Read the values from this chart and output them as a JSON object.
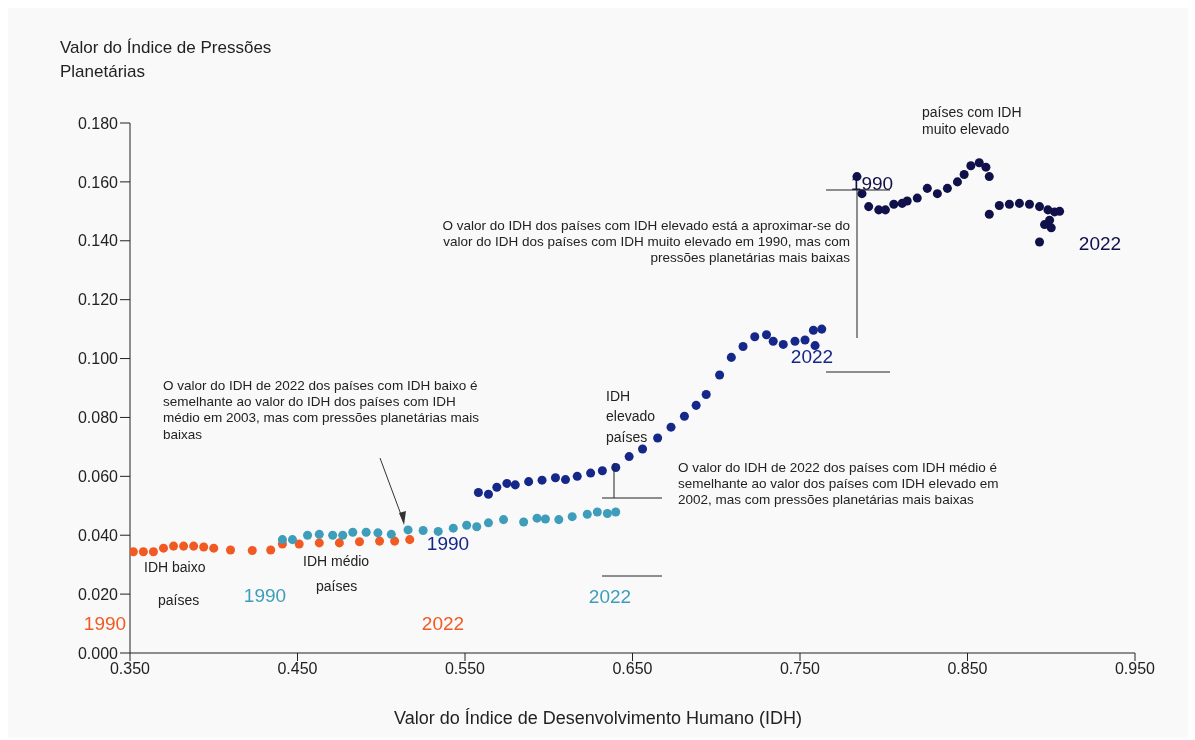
{
  "chart_data": {
    "type": "scatter",
    "ylabel": "Valor do Índice de Pressões Planetárias",
    "xlabel": "Valor do Índice de Desenvolvimento Humano (IDH)",
    "xlim": [
      0.35,
      0.95
    ],
    "xticks": [
      {
        "value": 0.35,
        "label": "0.350"
      },
      {
        "value": 0.45,
        "label": "0.450"
      },
      {
        "value": 0.55,
        "label": "0.550"
      },
      {
        "value": 0.65,
        "label": "0.650"
      },
      {
        "value": 0.75,
        "label": "0.750"
      },
      {
        "value": 0.85,
        "label": "0.850"
      },
      {
        "value": 0.95,
        "label": "0.950"
      }
    ],
    "ylim": [
      0,
      0.18
    ],
    "yticks": [
      {
        "value": 0,
        "label": "0.000"
      },
      {
        "value": 0.02,
        "label": "0.020"
      },
      {
        "value": 0.04,
        "label": "0.040"
      },
      {
        "value": 0.06,
        "label": "0.060"
      },
      {
        "value": 0.08,
        "label": "0.080"
      },
      {
        "value": 0.1,
        "label": "0.100"
      },
      {
        "value": 0.12,
        "label": "0.120"
      },
      {
        "value": 0.14,
        "label": "0.140"
      },
      {
        "value": 0.16,
        "label": "0.160"
      },
      {
        "value": 0.18,
        "label": "0.180"
      }
    ],
    "marker": "circle",
    "series": [
      {
        "color": "#f15a22",
        "x": [
          0.352,
          0.358,
          0.364,
          0.37,
          0.376,
          0.382,
          0.388,
          0.394,
          0.4,
          0.41,
          0.423,
          0.434,
          0.441,
          0.451,
          0.463,
          0.475,
          0.487,
          0.499,
          0.508,
          0.517
        ],
        "values": [
          0.0344,
          0.0344,
          0.0344,
          0.0356,
          0.0363,
          0.0363,
          0.0363,
          0.036,
          0.0356,
          0.035,
          0.0348,
          0.035,
          0.037,
          0.037,
          0.0374,
          0.0374,
          0.0378,
          0.038,
          0.038,
          0.0385
        ]
      },
      {
        "color": "#3e9dbb",
        "x": [
          0.441,
          0.447,
          0.456,
          0.463,
          0.471,
          0.477,
          0.483,
          0.491,
          0.498,
          0.506,
          0.516,
          0.525,
          0.534,
          0.543,
          0.551,
          0.557,
          0.564,
          0.573,
          0.585,
          0.593,
          0.598,
          0.606,
          0.614,
          0.623,
          0.629,
          0.635,
          0.64
        ],
        "values": [
          0.0385,
          0.0385,
          0.04,
          0.0403,
          0.04,
          0.04,
          0.041,
          0.041,
          0.0408,
          0.0403,
          0.0418,
          0.0416,
          0.0413,
          0.0424,
          0.0434,
          0.0429,
          0.0442,
          0.0453,
          0.0445,
          0.0458,
          0.0455,
          0.0453,
          0.0463,
          0.0471,
          0.0479,
          0.0474,
          0.0479
        ]
      },
      {
        "color": "#16278a",
        "x": [
          0.558,
          0.564,
          0.569,
          0.575,
          0.58,
          0.588,
          0.596,
          0.604,
          0.61,
          0.617,
          0.625,
          0.632,
          0.64,
          0.648,
          0.656,
          0.665,
          0.673,
          0.681,
          0.688,
          0.694,
          0.702,
          0.709,
          0.716,
          0.723,
          0.73,
          0.734,
          0.74,
          0.747,
          0.753,
          0.758,
          0.759,
          0.763
        ],
        "values": [
          0.0545,
          0.0539,
          0.0563,
          0.0576,
          0.0571,
          0.0582,
          0.0587,
          0.0595,
          0.0589,
          0.06,
          0.0611,
          0.0619,
          0.063,
          0.0667,
          0.0693,
          0.073,
          0.0767,
          0.0804,
          0.0841,
          0.0878,
          0.0944,
          0.1004,
          0.1041,
          0.1074,
          0.1081,
          0.1059,
          0.1048,
          0.1059,
          0.1063,
          0.1096,
          0.1044,
          0.11
        ]
      },
      {
        "color": "#10104a",
        "x": [
          0.784,
          0.787,
          0.791,
          0.797,
          0.801,
          0.806,
          0.811,
          0.814,
          0.82,
          0.826,
          0.832,
          0.838,
          0.844,
          0.848,
          0.852,
          0.857,
          0.861,
          0.863,
          0.863,
          0.869,
          0.875,
          0.881,
          0.887,
          0.893,
          0.898,
          0.902,
          0.905,
          0.893,
          0.896,
          0.899,
          0.9
        ],
        "values": [
          0.1618,
          0.156,
          0.1516,
          0.1505,
          0.1505,
          0.1524,
          0.1527,
          0.1535,
          0.1545,
          0.1578,
          0.156,
          0.1578,
          0.16,
          0.1625,
          0.1655,
          0.1665,
          0.165,
          0.1618,
          0.149,
          0.152,
          0.1524,
          0.1527,
          0.1524,
          0.1516,
          0.1505,
          0.1498,
          0.15,
          0.1396,
          0.1455,
          0.147,
          0.1444
        ]
      }
    ],
    "annotations": [
      "1990",
      "2022",
      "1990",
      "2022",
      "1990",
      "2022",
      "1990",
      "2022",
      "IDH baixo",
      "países",
      "IDH médio",
      "países",
      "IDH elevado países",
      "países com IDH muito elevado",
      "O valor do IDH de 2022 dos países com IDH baixo é semelhante ao valor do IDH dos países com IDH médio em 2003, mas com pressões planetárias mais baixas",
      "O valor do IDH de 2022 dos países com IDH médio é semelhante ao valor dos países com IDH elevado em 2002, mas com pressões planetárias mais baixas",
      "O valor do IDH dos países com IDH elevado está a aproximar-se do valor do IDH dos países com IDH muito elevado em 1990, mas com pressões planetárias mais baixas"
    ]
  }
}
